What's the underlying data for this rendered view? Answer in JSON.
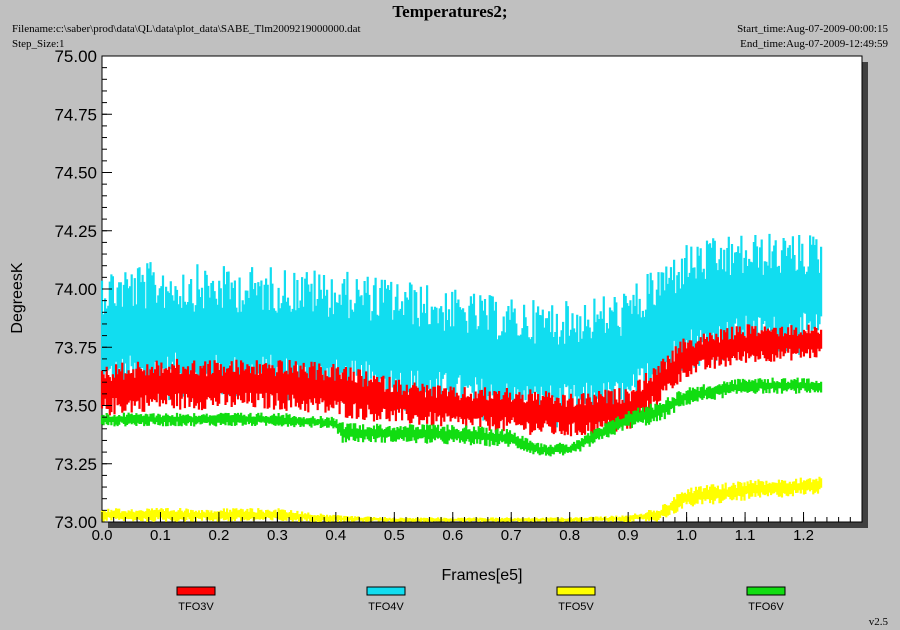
{
  "header": {
    "title": "Temperatures2;",
    "filename": "Filename:c:\\saber\\prod\\data\\QL\\data\\plot_data\\SABE_Tlm2009219000000.dat",
    "step_size": "Step_Size:1",
    "start_time": "Start_time:Aug-07-2009-00:00:15",
    "end_time": "End_time:Aug-07-2009-12:49:59"
  },
  "version": "v2.5",
  "chart_data": {
    "type": "line",
    "title": "Temperatures2;",
    "xlabel": "Frames[e5]",
    "ylabel": "DegreesK",
    "xlim": [
      0.0,
      1.3
    ],
    "ylim": [
      73.0,
      75.0
    ],
    "x_ticks": [
      "0.0",
      "0.1",
      "0.2",
      "0.3",
      "0.4",
      "0.5",
      "0.6",
      "0.7",
      "0.8",
      "0.9",
      "1.0",
      "1.1",
      "1.2"
    ],
    "y_ticks": [
      "73.00",
      "73.25",
      "73.50",
      "73.75",
      "74.00",
      "74.25",
      "74.50",
      "74.75",
      "75.00"
    ],
    "legend_position": "bottom",
    "grid": false,
    "series": [
      {
        "name": "TFO3V",
        "color": "#ff0000",
        "envelope": {
          "x": [
            0.0,
            0.1,
            0.2,
            0.3,
            0.4,
            0.5,
            0.6,
            0.7,
            0.8,
            0.9,
            0.95,
            1.0,
            1.1,
            1.23
          ],
          "low": [
            73.45,
            73.48,
            73.48,
            73.48,
            73.45,
            73.42,
            73.4,
            73.38,
            73.36,
            73.38,
            73.5,
            73.62,
            73.68,
            73.7
          ],
          "high": [
            73.68,
            73.7,
            73.7,
            73.7,
            73.68,
            73.62,
            73.58,
            73.58,
            73.55,
            73.58,
            73.68,
            73.8,
            73.85,
            73.85
          ]
        }
      },
      {
        "name": "TFO4V",
        "color": "#11ddf0",
        "envelope": {
          "x": [
            0.0,
            0.1,
            0.2,
            0.3,
            0.4,
            0.5,
            0.6,
            0.7,
            0.8,
            0.9,
            0.95,
            1.0,
            1.1,
            1.23
          ],
          "low": [
            73.5,
            73.52,
            73.52,
            73.52,
            73.5,
            73.48,
            73.45,
            73.42,
            73.4,
            73.42,
            73.55,
            73.65,
            73.7,
            73.72
          ],
          "high": [
            74.1,
            74.12,
            74.1,
            74.1,
            74.08,
            74.05,
            74.0,
            73.96,
            73.95,
            74.0,
            74.1,
            74.2,
            74.24,
            74.24
          ]
        }
      },
      {
        "name": "TFO5V",
        "color": "#ffff00",
        "envelope": {
          "x": [
            0.0,
            0.1,
            0.2,
            0.3,
            0.4,
            0.5,
            0.6,
            0.7,
            0.8,
            0.9,
            0.95,
            1.0,
            1.1,
            1.23
          ],
          "low": [
            73.0,
            73.0,
            73.0,
            73.0,
            73.0,
            73.0,
            73.0,
            73.0,
            73.0,
            73.0,
            73.0,
            73.06,
            73.09,
            73.12
          ],
          "high": [
            73.06,
            73.06,
            73.06,
            73.06,
            73.03,
            73.02,
            73.02,
            73.02,
            73.02,
            73.03,
            73.06,
            73.15,
            73.18,
            73.2
          ]
        }
      },
      {
        "name": "TFO6V",
        "color": "#11dd11",
        "envelope": {
          "x": [
            0.0,
            0.1,
            0.2,
            0.3,
            0.4,
            0.41,
            0.5,
            0.6,
            0.7,
            0.75,
            0.8,
            0.9,
            0.95,
            1.0,
            1.1,
            1.23
          ],
          "low": [
            73.41,
            73.41,
            73.41,
            73.41,
            73.4,
            73.34,
            73.34,
            73.33,
            73.32,
            73.28,
            73.28,
            73.4,
            73.42,
            73.5,
            73.55,
            73.55
          ],
          "high": [
            73.47,
            73.47,
            73.47,
            73.47,
            73.45,
            73.43,
            73.42,
            73.42,
            73.4,
            73.34,
            73.34,
            73.48,
            73.52,
            73.58,
            73.62,
            73.62
          ]
        }
      }
    ]
  }
}
